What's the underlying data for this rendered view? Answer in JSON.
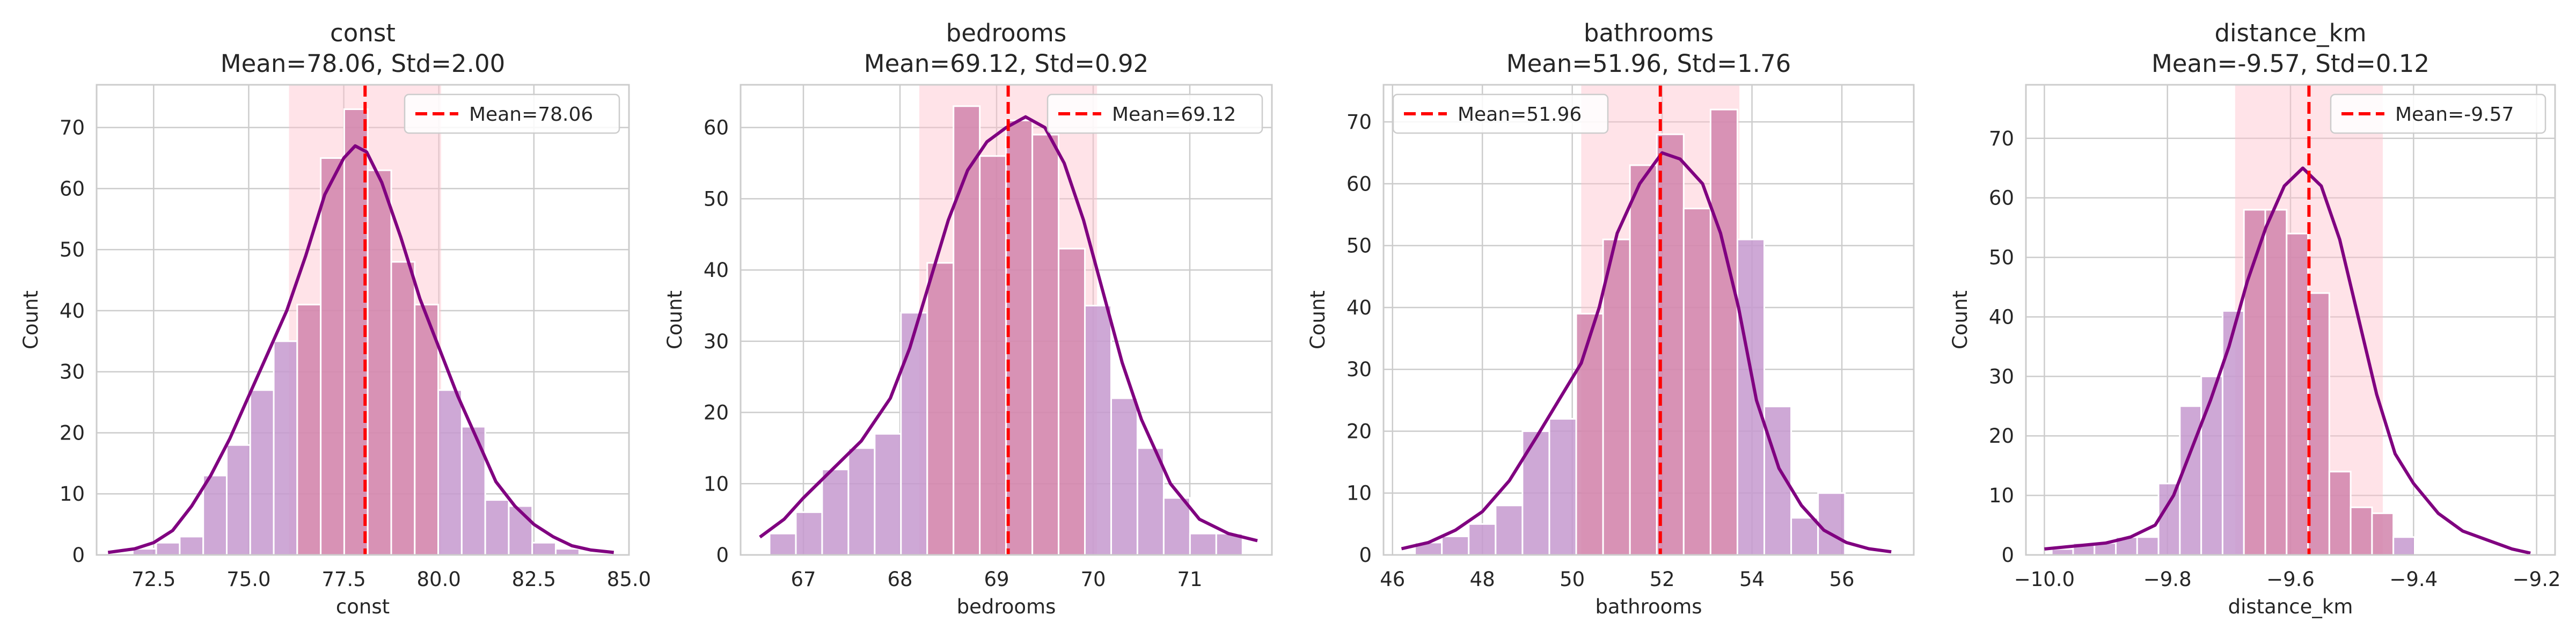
{
  "colors": {
    "bar": "#c699cf",
    "bar_in_band": "#d184ac",
    "bar_edge": "#ffffff",
    "kde": "#800080",
    "mean_line": "#ff0000",
    "band": "#ffc0cb",
    "grid": "#cccccc",
    "axes_edge": "#cccccc"
  },
  "chart_data": [
    {
      "type": "bar",
      "title": "const",
      "subtitle": "Mean=78.06, Std=2.00",
      "xlabel": "const",
      "ylabel": "Count",
      "legend": "Mean=78.06",
      "legend_loc": "upper right",
      "grid": true,
      "mean": 78.06,
      "std": 2.0,
      "xlim": [
        71.0,
        85.0
      ],
      "ylim": [
        0,
        77
      ],
      "xticks": [
        72.5,
        75.0,
        77.5,
        80.0,
        82.5,
        85.0
      ],
      "yticks": [
        0,
        10,
        20,
        30,
        40,
        50,
        60,
        70
      ],
      "bin_start": 71.95,
      "bin_width": 0.618,
      "counts": [
        1,
        2,
        3,
        13,
        18,
        27,
        35,
        41,
        65,
        73,
        63,
        48,
        41,
        27,
        21,
        9,
        8,
        2,
        1
      ],
      "kde": {
        "x": [
          71.3,
          72.0,
          72.5,
          73.0,
          73.5,
          74.0,
          74.5,
          75.0,
          75.5,
          76.0,
          76.5,
          77.0,
          77.5,
          77.8,
          78.1,
          78.5,
          79.0,
          79.5,
          80.0,
          80.5,
          81.0,
          81.5,
          82.0,
          82.5,
          83.0,
          83.5,
          84.0,
          84.6
        ],
        "y": [
          0.4,
          1,
          2,
          4,
          8,
          13,
          19,
          26,
          33,
          40,
          49,
          59,
          65,
          67,
          66,
          61,
          52,
          42,
          34,
          26,
          19,
          12,
          8,
          5,
          3,
          1.5,
          0.8,
          0.4
        ]
      }
    },
    {
      "type": "bar",
      "title": "bedrooms",
      "subtitle": "Mean=69.12, Std=0.92",
      "xlabel": "bedrooms",
      "ylabel": "Count",
      "legend": "Mean=69.12",
      "legend_loc": "upper right",
      "grid": true,
      "mean": 69.12,
      "std": 0.92,
      "xlim": [
        66.35,
        71.85
      ],
      "ylim": [
        0,
        66
      ],
      "xticks": [
        67,
        68,
        69,
        70,
        71
      ],
      "yticks": [
        0,
        10,
        20,
        30,
        40,
        50,
        60
      ],
      "bin_start": 66.65,
      "bin_width": 0.272,
      "counts": [
        3,
        6,
        12,
        15,
        17,
        34,
        41,
        63,
        56,
        61,
        59,
        43,
        35,
        22,
        15,
        8,
        3,
        3
      ],
      "kde": {
        "x": [
          66.55,
          66.8,
          67.0,
          67.3,
          67.6,
          67.9,
          68.1,
          68.3,
          68.5,
          68.7,
          68.9,
          69.1,
          69.3,
          69.5,
          69.7,
          69.9,
          70.1,
          70.3,
          70.5,
          70.8,
          71.1,
          71.4,
          71.7
        ],
        "y": [
          2.5,
          5,
          8,
          12,
          16,
          22,
          29,
          38,
          47,
          54,
          58,
          60,
          61.5,
          60,
          55,
          47,
          37,
          27,
          19,
          10,
          5,
          3,
          2
        ]
      }
    },
    {
      "type": "bar",
      "title": "bathrooms",
      "subtitle": "Mean=51.96, Std=1.76",
      "xlabel": "bathrooms",
      "ylabel": "Count",
      "legend": "Mean=51.96",
      "legend_loc": "upper left",
      "grid": true,
      "mean": 51.96,
      "std": 1.76,
      "xlim": [
        45.8,
        57.6
      ],
      "ylim": [
        0,
        76
      ],
      "xticks": [
        46,
        48,
        50,
        52,
        54,
        56
      ],
      "yticks": [
        0,
        10,
        20,
        30,
        40,
        50,
        60,
        70
      ],
      "bin_start": 46.5,
      "bin_width": 0.598,
      "counts": [
        2,
        3,
        5,
        8,
        20,
        22,
        39,
        51,
        63,
        68,
        56,
        72,
        51,
        24,
        6,
        10
      ],
      "kde": {
        "x": [
          46.2,
          46.8,
          47.4,
          48.0,
          48.6,
          49.2,
          49.7,
          50.2,
          50.6,
          51.0,
          51.5,
          52.0,
          52.4,
          52.9,
          53.3,
          53.7,
          54.1,
          54.6,
          55.1,
          55.6,
          56.1,
          56.6,
          57.1
        ],
        "y": [
          1,
          2,
          4,
          7,
          12,
          19,
          25,
          31,
          40,
          52,
          60,
          65,
          64,
          60,
          52,
          40,
          25,
          14,
          8,
          4,
          2,
          1,
          0.5
        ]
      }
    },
    {
      "type": "bar",
      "title": "distance_km",
      "subtitle": "Mean=-9.57, Std=0.12",
      "xlabel": "distance_km",
      "ylabel": "Count",
      "legend": "Mean=-9.57",
      "legend_loc": "upper right",
      "grid": true,
      "mean": -9.57,
      "std": 0.12,
      "xlim": [
        -10.03,
        -9.17
      ],
      "ylim": [
        0,
        79
      ],
      "xticks": [
        -10.0,
        -9.8,
        -9.6,
        -9.4,
        -9.2
      ],
      "yticks": [
        0,
        10,
        20,
        30,
        40,
        50,
        60,
        70
      ],
      "bin_start": -9.988,
      "bin_width": 0.0347,
      "counts": [
        1,
        2,
        2,
        3,
        3,
        12,
        25,
        30,
        41,
        58,
        58,
        54,
        44,
        14,
        8,
        7,
        3
      ],
      "kde": {
        "x": [
          -10.0,
          -9.95,
          -9.9,
          -9.86,
          -9.82,
          -9.79,
          -9.76,
          -9.73,
          -9.7,
          -9.67,
          -9.64,
          -9.61,
          -9.58,
          -9.55,
          -9.52,
          -9.49,
          -9.46,
          -9.43,
          -9.4,
          -9.36,
          -9.32,
          -9.28,
          -9.24,
          -9.21
        ],
        "y": [
          1,
          1.5,
          2,
          3,
          5,
          10,
          18,
          26,
          35,
          46,
          55,
          62,
          65,
          62,
          53,
          40,
          27,
          17,
          12,
          7,
          4,
          2.5,
          1,
          0.3
        ]
      }
    }
  ]
}
